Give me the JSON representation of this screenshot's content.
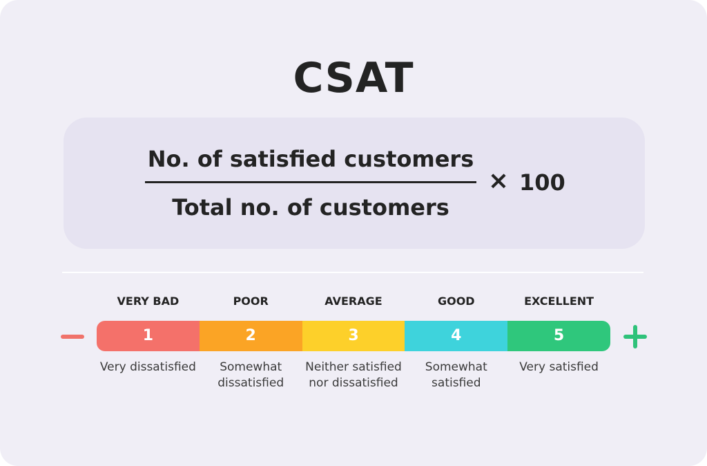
{
  "title": "CSAT",
  "formula": {
    "numerator": "No. of satisfied  customers",
    "denominator": "Total no. of customers",
    "operator": "×",
    "multiplier": "100"
  },
  "scale": {
    "minus_icon": "minus-icon",
    "plus_icon": "plus-icon",
    "items": [
      {
        "label": "VERY BAD",
        "value": "1",
        "description": "Very dissatisfied",
        "color": "#f4716a"
      },
      {
        "label": "POOR",
        "value": "2",
        "description": "Somewhat dissatisfied",
        "color": "#fba425"
      },
      {
        "label": "AVERAGE",
        "value": "3",
        "description": "Neither satisfied nor dissatisfied",
        "color": "#fdd02a"
      },
      {
        "label": "GOOD",
        "value": "4",
        "description": "Somewhat satisfied",
        "color": "#3ed3dc"
      },
      {
        "label": "EXCELLENT",
        "value": "5",
        "description": "Very satisfied",
        "color": "#2fc77c"
      }
    ]
  }
}
